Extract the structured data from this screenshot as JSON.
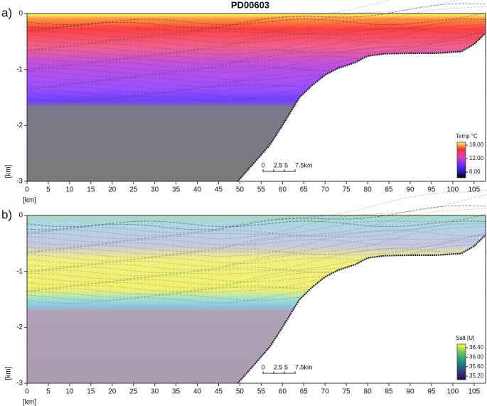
{
  "chart_data": [
    {
      "type": "section",
      "title": "PD00603",
      "panel_label": "a)",
      "xlabel": "[km]",
      "ylabel": "[km]",
      "xlim": [
        0,
        107.7
      ],
      "xticks": [
        0,
        5,
        10,
        15,
        20,
        25,
        30,
        35,
        40,
        45,
        50,
        55,
        60,
        65,
        70,
        75,
        80,
        85,
        90,
        95,
        100,
        105
      ],
      "ylim": [
        -3,
        0
      ],
      "yticks": [
        0,
        -1,
        -2,
        -3
      ],
      "colorbar": {
        "label": "Temp °C",
        "lim": [
          3.5,
          19.3
        ],
        "ticks": [
          {
            "value": 18,
            "label": "18.00"
          },
          {
            "value": 12,
            "label": "12.00"
          },
          {
            "value": 6,
            "label": "6.00"
          }
        ],
        "colors": [
          "#ffff60",
          "#ff3030",
          "#e040b0",
          "#8030ff",
          "#3020c0",
          "#000000"
        ]
      },
      "scale_bar": {
        "labels": [
          "0",
          "2.5",
          "5",
          "7.5km"
        ]
      }
    },
    {
      "type": "section",
      "panel_label": "b)",
      "xlabel": "[km]",
      "ylabel": "[km]",
      "xlim": [
        0,
        107.7
      ],
      "xticks": [
        0,
        5,
        10,
        15,
        20,
        25,
        30,
        35,
        40,
        45,
        50,
        55,
        60,
        65,
        70,
        75,
        80,
        85,
        90,
        95,
        100,
        105
      ],
      "ylim": [
        -3,
        0
      ],
      "yticks": [
        0,
        -1,
        -2,
        -3
      ],
      "colorbar": {
        "label": "Salt [U]",
        "lim": [
          35.05,
          36.55
        ],
        "ticks": [
          {
            "value": 36.4,
            "label": "36.40"
          },
          {
            "value": 36.0,
            "label": "36.00"
          },
          {
            "value": 35.6,
            "label": "35.60"
          },
          {
            "value": 35.2,
            "label": "35.20"
          }
        ],
        "colors": [
          "#ffff40",
          "#60c060",
          "#208c8c",
          "#304080",
          "#300a40"
        ]
      },
      "scale_bar": {
        "labels": [
          "0",
          "2.5",
          "5",
          "7.5km"
        ]
      }
    }
  ]
}
